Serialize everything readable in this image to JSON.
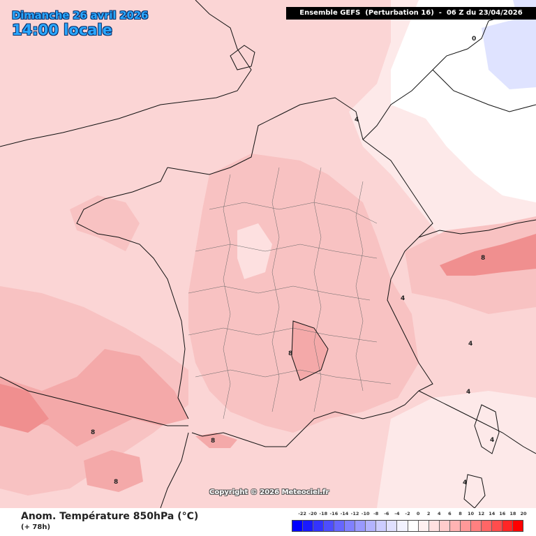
{
  "header": {
    "date_label": "Dimanche 26 avril 2026",
    "time_label": "14:00 locale",
    "run_banner": "Ensemble GEFS  (Perturbation 16)  -  06 Z du 23/04/2026"
  },
  "map": {
    "copyright": "Copyright © 2026 Meteociel.fr",
    "contour_labels": [
      "0",
      "4",
      "4",
      "4",
      "4",
      "4",
      "4",
      "8",
      "8",
      "8",
      "8",
      "8"
    ]
  },
  "footer": {
    "parameter": "Anom. Température 850hPa (°C)",
    "lead_time": "(+ 78h)"
  },
  "legend": {
    "labels": [
      "-22",
      "-20",
      "-18",
      "-16",
      "-14",
      "-12",
      "-10",
      "-8",
      "-6",
      "-4",
      "-2",
      "0",
      "2",
      "4",
      "6",
      "8",
      "10",
      "12",
      "14",
      "16",
      "18",
      "20"
    ],
    "colors": [
      "#0000ff",
      "#1a1aff",
      "#3333ff",
      "#4d4dff",
      "#6666ff",
      "#8080ff",
      "#9999ff",
      "#b3b3ff",
      "#ccccff",
      "#e0e0ff",
      "#f2f2ff",
      "#ffffff",
      "#fff0f0",
      "#ffe0e0",
      "#ffcccc",
      "#ffb3b3",
      "#ff9999",
      "#ff8080",
      "#ff6666",
      "#ff4d4d",
      "#ff2626",
      "#ff0000"
    ]
  }
}
